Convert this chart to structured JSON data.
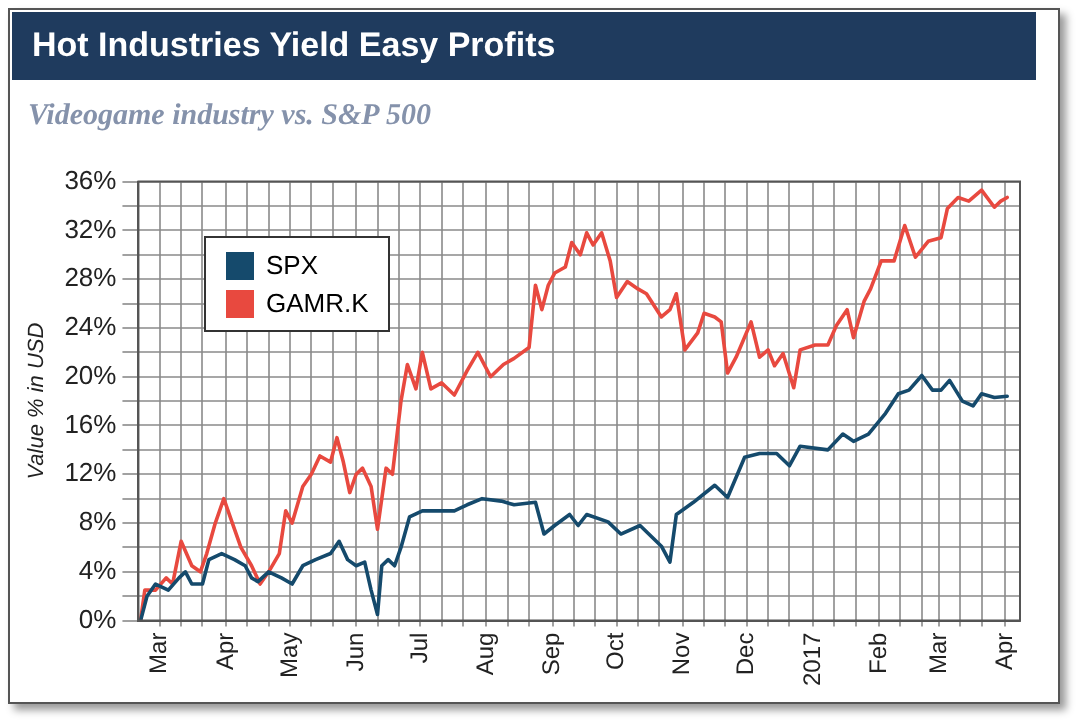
{
  "chart_data": {
    "type": "line",
    "title": "Hot Industries Yield Easy Profits",
    "subtitle": "Videogame industry vs. S&P 500",
    "ylabel": "Value % in USD",
    "xlim": [
      "2016-02-20",
      "2017-04-08"
    ],
    "xticks": [
      {
        "value": "2016-03-01",
        "label": "Mar"
      },
      {
        "value": "2016-03-11",
        "label": null
      },
      {
        "value": "2016-03-21",
        "label": null
      },
      {
        "value": "2016-04-01",
        "label": "Apr"
      },
      {
        "value": "2016-04-11",
        "label": null
      },
      {
        "value": "2016-04-21",
        "label": null
      },
      {
        "value": "2016-05-01",
        "label": "May"
      },
      {
        "value": "2016-05-11",
        "label": null
      },
      {
        "value": "2016-05-21",
        "label": null
      },
      {
        "value": "2016-06-01",
        "label": "Jun"
      },
      {
        "value": "2016-06-11",
        "label": null
      },
      {
        "value": "2016-06-21",
        "label": null
      },
      {
        "value": "2016-07-01",
        "label": "Jul"
      },
      {
        "value": "2016-07-11",
        "label": null
      },
      {
        "value": "2016-07-21",
        "label": null
      },
      {
        "value": "2016-08-01",
        "label": "Aug"
      },
      {
        "value": "2016-08-11",
        "label": null
      },
      {
        "value": "2016-08-21",
        "label": null
      },
      {
        "value": "2016-09-01",
        "label": "Sep"
      },
      {
        "value": "2016-09-11",
        "label": null
      },
      {
        "value": "2016-09-21",
        "label": null
      },
      {
        "value": "2016-10-01",
        "label": "Oct"
      },
      {
        "value": "2016-10-11",
        "label": null
      },
      {
        "value": "2016-10-21",
        "label": null
      },
      {
        "value": "2016-11-01",
        "label": "Nov"
      },
      {
        "value": "2016-11-11",
        "label": null
      },
      {
        "value": "2016-11-21",
        "label": null
      },
      {
        "value": "2016-12-01",
        "label": "Dec"
      },
      {
        "value": "2016-12-11",
        "label": null
      },
      {
        "value": "2016-12-21",
        "label": null
      },
      {
        "value": "2017-01-01",
        "label": "2017"
      },
      {
        "value": "2017-01-11",
        "label": null
      },
      {
        "value": "2017-01-21",
        "label": null
      },
      {
        "value": "2017-02-01",
        "label": "Feb"
      },
      {
        "value": "2017-02-11",
        "label": null
      },
      {
        "value": "2017-02-21",
        "label": null
      },
      {
        "value": "2017-03-01",
        "label": "Mar"
      },
      {
        "value": "2017-03-11",
        "label": null
      },
      {
        "value": "2017-03-21",
        "label": null
      },
      {
        "value": "2017-04-01",
        "label": "Apr"
      }
    ],
    "ylim": [
      0,
      36
    ],
    "yticks": [
      {
        "value": 0,
        "label": "0%"
      },
      {
        "value": 2,
        "label": null
      },
      {
        "value": 4,
        "label": "4%"
      },
      {
        "value": 6,
        "label": null
      },
      {
        "value": 8,
        "label": "8%"
      },
      {
        "value": 10,
        "label": null
      },
      {
        "value": 12,
        "label": "12%"
      },
      {
        "value": 14,
        "label": null
      },
      {
        "value": 16,
        "label": "16%"
      },
      {
        "value": 18,
        "label": null
      },
      {
        "value": 20,
        "label": "20%"
      },
      {
        "value": 22,
        "label": null
      },
      {
        "value": 24,
        "label": "24%"
      },
      {
        "value": 26,
        "label": null
      },
      {
        "value": 28,
        "label": "28%"
      },
      {
        "value": 30,
        "label": null
      },
      {
        "value": 32,
        "label": "32%"
      },
      {
        "value": 34,
        "label": null
      },
      {
        "value": 36,
        "label": "36%"
      }
    ],
    "grid": true,
    "legend": "top left",
    "marker": "none",
    "line_style": "solid",
    "series": [
      {
        "name": "SPX",
        "color": "#154a6c",
        "x": [
          "2016-02-21",
          "2016-02-24",
          "2016-02-28",
          "2016-03-05",
          "2016-03-10",
          "2016-03-13",
          "2016-03-16",
          "2016-03-21",
          "2016-03-24",
          "2016-03-30",
          "2016-04-05",
          "2016-04-10",
          "2016-04-13",
          "2016-04-16",
          "2016-04-21",
          "2016-04-27",
          "2016-05-02",
          "2016-05-07",
          "2016-05-13",
          "2016-05-20",
          "2016-05-24",
          "2016-05-28",
          "2016-06-01",
          "2016-06-05",
          "2016-06-08",
          "2016-06-11",
          "2016-06-13",
          "2016-06-16",
          "2016-06-19",
          "2016-06-22",
          "2016-06-26",
          "2016-07-02",
          "2016-07-11",
          "2016-07-17",
          "2016-07-23",
          "2016-07-30",
          "2016-08-08",
          "2016-08-14",
          "2016-08-24",
          "2016-08-28",
          "2016-09-02",
          "2016-09-09",
          "2016-09-13",
          "2016-09-17",
          "2016-09-27",
          "2016-10-03",
          "2016-10-12",
          "2016-10-22",
          "2016-10-26",
          "2016-10-29",
          "2016-11-06",
          "2016-11-16",
          "2016-11-22",
          "2016-11-30",
          "2016-12-07",
          "2016-12-15",
          "2016-12-21",
          "2016-12-26",
          "2017-01-08",
          "2017-01-15",
          "2017-01-20",
          "2017-01-27",
          "2017-02-04",
          "2017-02-10",
          "2017-02-15",
          "2017-02-21",
          "2017-02-26",
          "2017-03-02",
          "2017-03-06",
          "2017-03-12",
          "2017-03-17",
          "2017-03-21",
          "2017-03-27",
          "2017-04-02"
        ],
        "values": [
          0,
          2,
          3,
          2.5,
          3.5,
          4,
          3,
          3,
          5,
          5.5,
          5,
          4.5,
          3.5,
          3.2,
          4,
          3.5,
          3,
          4.5,
          5,
          5.5,
          6.5,
          5,
          4.5,
          4.8,
          2.5,
          0.5,
          4.5,
          5,
          4.5,
          6,
          8.5,
          9,
          9,
          9,
          9.5,
          10,
          9.8,
          9.5,
          9.7,
          7.1,
          7.8,
          8.7,
          7.8,
          8.7,
          8.1,
          7.1,
          7.8,
          6.1,
          4.8,
          8.7,
          9.7,
          11.1,
          10.1,
          13.4,
          13.7,
          13.7,
          12.7,
          14.3,
          14,
          15.3,
          14.7,
          15.3,
          17,
          18.6,
          18.9,
          20.1,
          18.9,
          18.9,
          19.7,
          18,
          17.6,
          18.6,
          18.3,
          18.4
        ]
      },
      {
        "name": "GAMR.K",
        "color": "#e8493f",
        "x": [
          "2016-02-21",
          "2016-02-23",
          "2016-02-28",
          "2016-03-04",
          "2016-03-07",
          "2016-03-11",
          "2016-03-16",
          "2016-03-20",
          "2016-03-23",
          "2016-03-27",
          "2016-03-31",
          "2016-04-04",
          "2016-04-08",
          "2016-04-13",
          "2016-04-17",
          "2016-04-21",
          "2016-04-26",
          "2016-04-29",
          "2016-05-02",
          "2016-05-07",
          "2016-05-11",
          "2016-05-15",
          "2016-05-20",
          "2016-05-23",
          "2016-05-26",
          "2016-05-29",
          "2016-06-01",
          "2016-06-04",
          "2016-06-08",
          "2016-06-11",
          "2016-06-15",
          "2016-06-18",
          "2016-06-22",
          "2016-06-25",
          "2016-06-29",
          "2016-07-02",
          "2016-07-06",
          "2016-07-11",
          "2016-07-17",
          "2016-07-23",
          "2016-07-28",
          "2016-08-03",
          "2016-08-09",
          "2016-08-14",
          "2016-08-21",
          "2016-08-24",
          "2016-08-27",
          "2016-08-30",
          "2016-09-02",
          "2016-09-07",
          "2016-09-10",
          "2016-09-14",
          "2016-09-17",
          "2016-09-20",
          "2016-09-24",
          "2016-09-28",
          "2016-10-01",
          "2016-10-06",
          "2016-10-11",
          "2016-10-15",
          "2016-10-22",
          "2016-10-26",
          "2016-10-29",
          "2016-11-02",
          "2016-11-08",
          "2016-11-11",
          "2016-11-16",
          "2016-11-19",
          "2016-11-22",
          "2016-11-26",
          "2016-12-03",
          "2016-12-07",
          "2016-12-11",
          "2016-12-14",
          "2016-12-18",
          "2016-12-23",
          "2016-12-26",
          "2017-01-02",
          "2017-01-08",
          "2017-01-12",
          "2017-01-17",
          "2017-01-20",
          "2017-01-25",
          "2017-01-28",
          "2017-02-02",
          "2017-02-08",
          "2017-02-13",
          "2017-02-18",
          "2017-02-24",
          "2017-03-02",
          "2017-03-05",
          "2017-03-10",
          "2017-03-15",
          "2017-03-21",
          "2017-03-27",
          "2017-03-30",
          "2017-04-02"
        ],
        "values": [
          0,
          2.5,
          2.5,
          3.5,
          3,
          6.5,
          4.5,
          4,
          5.5,
          8,
          10,
          8,
          6,
          4.5,
          3,
          4,
          5.5,
          9,
          8,
          11,
          12,
          13.5,
          13,
          15,
          13,
          10.5,
          12,
          12.5,
          11,
          7.5,
          12.5,
          12,
          18,
          21,
          19,
          22,
          19,
          19.5,
          18.5,
          20.5,
          22,
          20,
          21,
          21.5,
          22.4,
          27.5,
          25.5,
          27.5,
          28.5,
          29,
          31,
          30,
          31.8,
          30.8,
          31.8,
          29.5,
          26.5,
          27.8,
          27.2,
          26.8,
          24.9,
          25.5,
          26.8,
          22.2,
          23.6,
          25.2,
          24.9,
          24.5,
          20.3,
          21.6,
          24.5,
          21.6,
          22.2,
          20.9,
          21.9,
          19.1,
          22.2,
          22.6,
          22.6,
          24.2,
          25.5,
          23.2,
          26.2,
          27.2,
          29.5,
          29.5,
          32.4,
          29.8,
          31.1,
          31.4,
          33.8,
          34.7,
          34.4,
          35.3,
          33.9,
          34.4,
          34.7
        ]
      }
    ]
  }
}
